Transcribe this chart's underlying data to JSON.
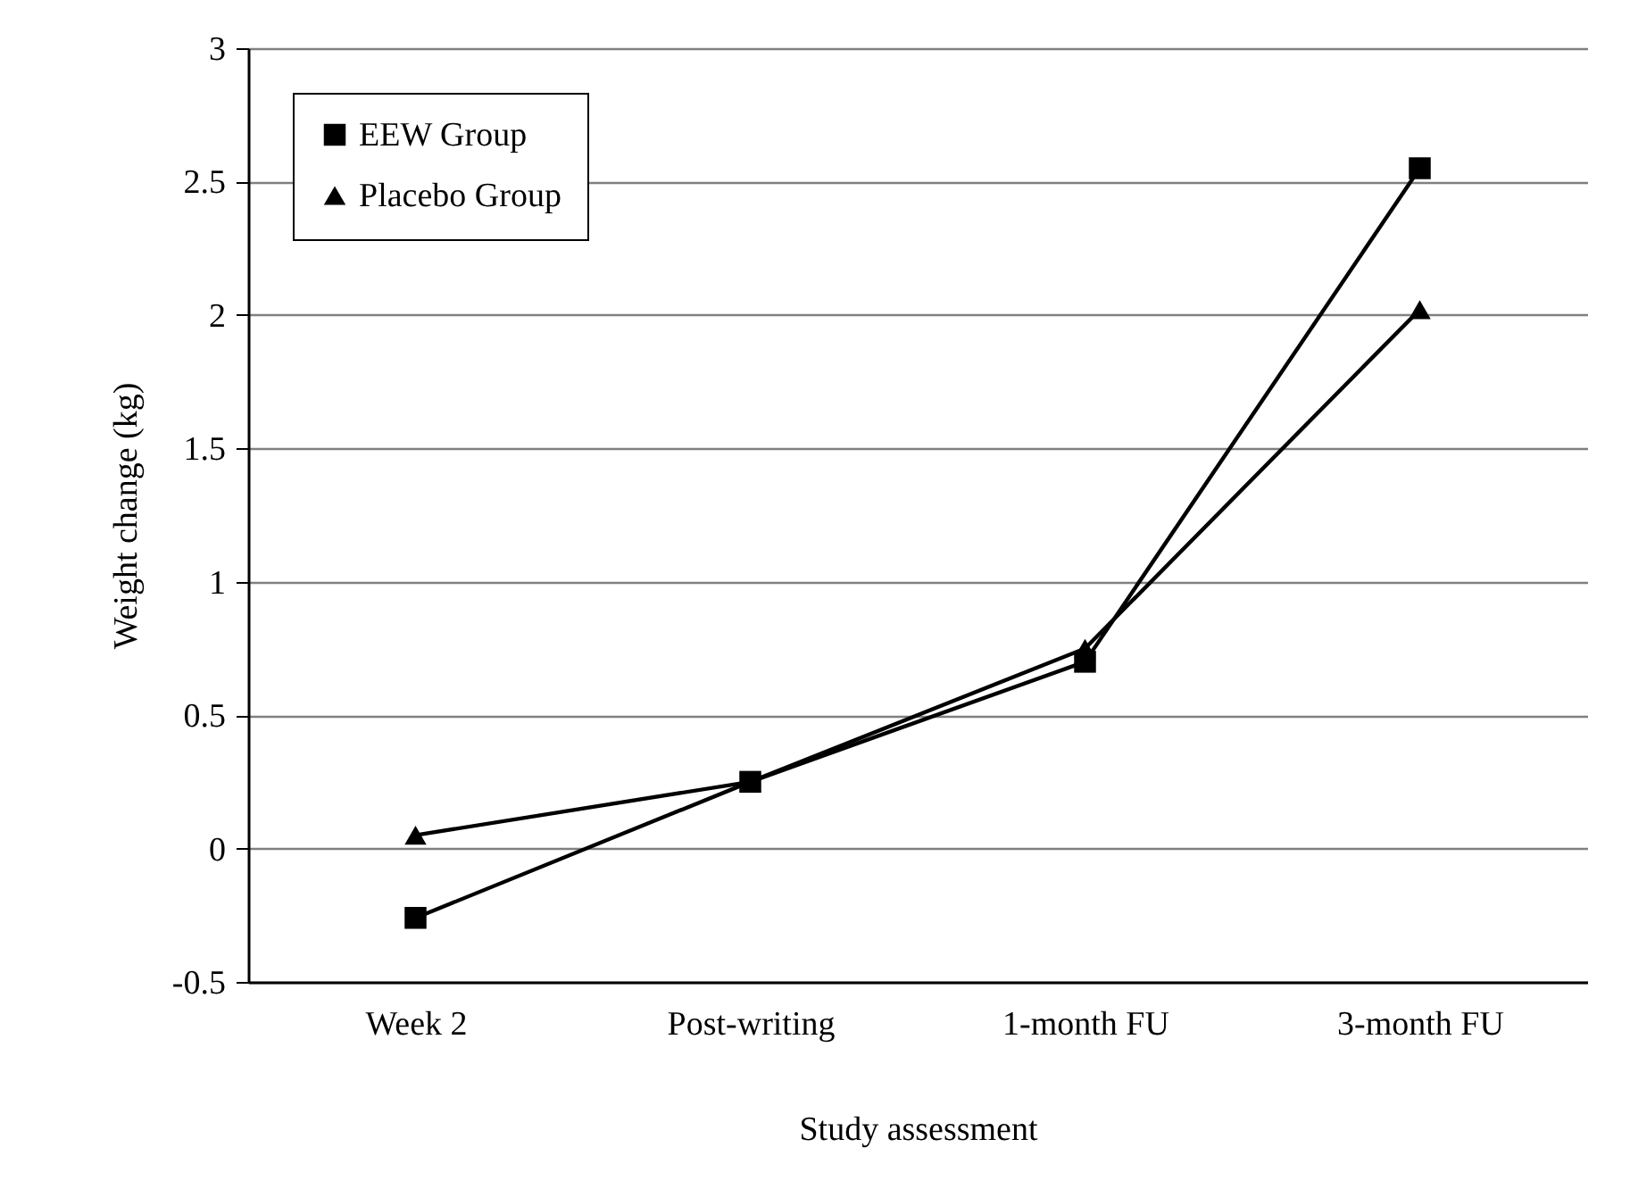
{
  "chart_data": {
    "type": "line",
    "xlabel": "Study assessment",
    "ylabel": "Weight change (kg)",
    "categories": [
      "Week 2",
      "Post-writing",
      "1-month FU",
      "3-month FU"
    ],
    "series": [
      {
        "name": "EEW Group",
        "color": "#000000",
        "marker": "square",
        "values": [
          -0.26,
          0.25,
          0.7,
          2.55
        ]
      },
      {
        "name": "Placebo Group",
        "color": "#000000",
        "marker": "triangle",
        "values": [
          0.05,
          0.25,
          0.75,
          2.02
        ]
      }
    ],
    "ylim": [
      -0.5,
      3
    ],
    "yticks": [
      -0.5,
      0,
      0.5,
      1,
      1.5,
      2,
      2.5,
      3
    ],
    "grid": "y",
    "legend": "top left",
    "line_style": "solid"
  }
}
